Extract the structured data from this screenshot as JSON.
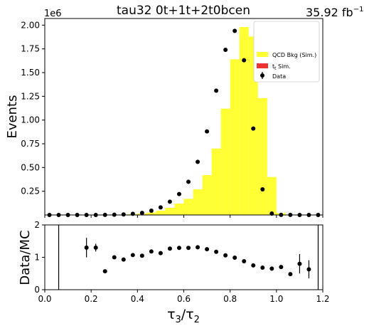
{
  "chart_data": [
    {
      "type": "bar",
      "title": "tau32  0t+1t+2t0bcen",
      "lumi_label": "35.92 fb",
      "lumi_sup": "−1",
      "ylabel": "Events",
      "y_scale_label": "1e6",
      "xlim": [
        0.0,
        1.2
      ],
      "ylim": [
        0,
        2.07
      ],
      "yticks": [
        "0.25",
        "0.50",
        "0.75",
        "1.00",
        "1.25",
        "1.50",
        "1.75",
        "2.00"
      ],
      "ytick_values": [
        0.25,
        0.5,
        0.75,
        1.0,
        1.25,
        1.5,
        1.75,
        2.0
      ],
      "grid": false,
      "legend_position": "top-right",
      "legend": {
        "qcd": "QCD Bkg (Sim.)",
        "ttbar_main": "t",
        "ttbar_rest": " Sim.",
        "data": "Data"
      },
      "colors": {
        "qcd": "#ffff33",
        "ttbar": "#ee3333",
        "data": "#000000"
      },
      "bin_edges": [
        0.0,
        0.04,
        0.08,
        0.12,
        0.16,
        0.2,
        0.24,
        0.28,
        0.32,
        0.36,
        0.4,
        0.44,
        0.48,
        0.52,
        0.56,
        0.6,
        0.64,
        0.68,
        0.72,
        0.76,
        0.8,
        0.84,
        0.88,
        0.92,
        0.96,
        1.0,
        1.04,
        1.08,
        1.12,
        1.16,
        1.2
      ],
      "series": [
        {
          "name": "QCD Bkg (Sim.)",
          "values": [
            0,
            0,
            0,
            0,
            0,
            0,
            0,
            0.002,
            0.005,
            0.008,
            0.015,
            0.025,
            0.045,
            0.075,
            0.12,
            0.17,
            0.27,
            0.42,
            0.7,
            1.12,
            1.64,
            1.98,
            1.88,
            1.23,
            0.4,
            0.02,
            0.002,
            0,
            0,
            0
          ]
        },
        {
          "name": "Data",
          "x": [
            0.02,
            0.06,
            0.1,
            0.14,
            0.18,
            0.22,
            0.26,
            0.3,
            0.34,
            0.38,
            0.42,
            0.46,
            0.5,
            0.54,
            0.58,
            0.62,
            0.66,
            0.7,
            0.74,
            0.78,
            0.82,
            0.86,
            0.9,
            0.94,
            0.98,
            1.02,
            1.06,
            1.1,
            1.14,
            1.18
          ],
          "values": [
            0,
            0,
            0,
            0,
            0,
            0,
            0.001,
            0.003,
            0.006,
            0.012,
            0.022,
            0.045,
            0.08,
            0.14,
            0.22,
            0.35,
            0.56,
            0.88,
            1.31,
            1.74,
            1.94,
            1.63,
            0.91,
            0.27,
            0.015,
            0.001,
            0.0005,
            0,
            0,
            0
          ]
        }
      ]
    },
    {
      "type": "scatter",
      "ylabel": "Data/MC",
      "xlabel_main": "τ",
      "xlabel_sub1": "3",
      "xlabel_sub2": "2",
      "xlim": [
        0.0,
        1.2
      ],
      "ylim": [
        0,
        2
      ],
      "xticks": [
        "0.0",
        "0.2",
        "0.4",
        "0.6",
        "0.8",
        "1.0",
        "1.2"
      ],
      "xtick_values": [
        0.0,
        0.2,
        0.4,
        0.6,
        0.8,
        1.0,
        1.2
      ],
      "yticks": [
        "0",
        "1",
        "2"
      ],
      "ytick_values": [
        0,
        1,
        2
      ],
      "x": [
        0.06,
        0.18,
        0.22,
        0.26,
        0.3,
        0.34,
        0.38,
        0.42,
        0.46,
        0.5,
        0.54,
        0.58,
        0.62,
        0.66,
        0.7,
        0.74,
        0.78,
        0.82,
        0.86,
        0.9,
        0.94,
        0.98,
        1.02,
        1.06,
        1.1,
        1.14,
        1.18
      ],
      "values": [
        null,
        1.3,
        1.3,
        0.57,
        1.0,
        0.93,
        1.07,
        1.05,
        1.18,
        1.13,
        1.27,
        1.29,
        1.29,
        1.31,
        1.25,
        1.17,
        1.06,
        0.99,
        0.88,
        0.75,
        0.68,
        0.65,
        0.7,
        0.48,
        0.8,
        0.63,
        null
      ],
      "errors_low": [
        1.58,
        0.3,
        0.12,
        0,
        0,
        0,
        0,
        0,
        0,
        0,
        0,
        0,
        0,
        0,
        0,
        0,
        0,
        0,
        0,
        0,
        0,
        0,
        0,
        0,
        0.3,
        0.28,
        1.6
      ],
      "errors_high": [
        1.58,
        0.3,
        0.12,
        0,
        0,
        0,
        0,
        0,
        0,
        0,
        0,
        0,
        0,
        0,
        0,
        0,
        0,
        0,
        0,
        0,
        0,
        0,
        0,
        0,
        0.3,
        0.28,
        1.6
      ],
      "error_centers": [
        1.0,
        1.3,
        1.3,
        0.57,
        1.0,
        0.93,
        1.07,
        1.05,
        1.18,
        1.13,
        1.27,
        1.29,
        1.29,
        1.31,
        1.25,
        1.17,
        1.06,
        0.99,
        0.88,
        0.75,
        0.68,
        0.65,
        0.7,
        0.48,
        0.8,
        0.63,
        1.0
      ]
    }
  ]
}
